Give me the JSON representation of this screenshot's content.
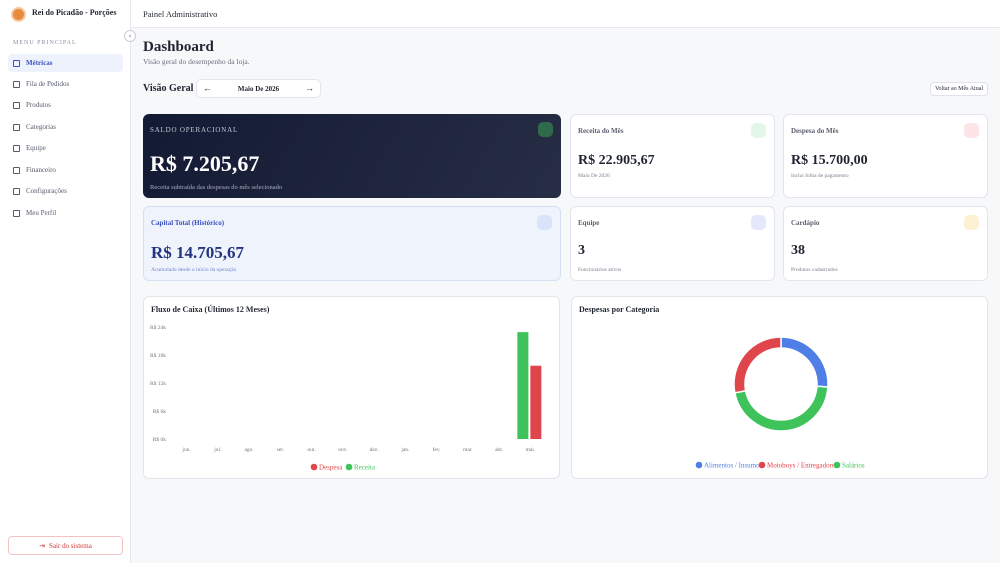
{
  "sidebar": {
    "brand": "Rei do Picadão - Porções",
    "section": "MENU PRINCIPAL",
    "menu": [
      "Métricas",
      "Fila de Pedidos",
      "Produtos",
      "Categorias",
      "Equipe",
      "Financeiro",
      "Configurações",
      "Meu Perfil"
    ],
    "logout": "Sair do sistema"
  },
  "header": {
    "title": "Painel Administrativo"
  },
  "page": {
    "title": "Dashboard",
    "subtitle": "Visão geral do desempenho da loja."
  },
  "overview": {
    "title": "Visão Geral",
    "month": "Maio De 2026",
    "back_button": "Voltar ao Mês Atual"
  },
  "cards": [
    {
      "label": "SALDO OPERACIONAL",
      "value": "R$ 7.205,67",
      "note": "Receita subtraída das despesas do mês selecionado"
    },
    {
      "label": "Receita do Mês",
      "value": "R$ 22.905,67",
      "note": "Maio De 2026"
    },
    {
      "label": "Despesa do Mês",
      "value": "R$ 15.700,00",
      "note": "Inclui folha de pagamento"
    },
    {
      "label": "Capital Total (Histórico)",
      "value": "R$ 14.705,67",
      "note": "Acumulado desde o início da operação"
    },
    {
      "label": "Equipe",
      "value": "3",
      "note": "Funcionários ativos"
    },
    {
      "label": "Cardápio",
      "value": "38",
      "note": "Produtos cadastrados"
    }
  ],
  "chart_data": [
    {
      "type": "bar",
      "title": "Fluxo de Caixa (Últimos 12 Meses)",
      "categories": [
        "jun.",
        "jul.",
        "ago.",
        "set.",
        "out.",
        "nov.",
        "dez.",
        "jan.",
        "fev.",
        "mar.",
        "abr.",
        "mai."
      ],
      "series": [
        {
          "name": "Despesa",
          "color": "#e0454b",
          "values": [
            0,
            0,
            0,
            0,
            0,
            0,
            0,
            0,
            0,
            0,
            0,
            15700
          ]
        },
        {
          "name": "Receita",
          "color": "#3ec35a",
          "values": [
            0,
            0,
            0,
            0,
            0,
            0,
            0,
            0,
            0,
            0,
            0,
            22905.67
          ]
        }
      ],
      "ylim": [
        0,
        24000
      ],
      "yticks": [
        {
          "value": 0,
          "label": "R$ 0k"
        },
        {
          "value": 6000,
          "label": "R$ 6k"
        },
        {
          "value": 12000,
          "label": "R$ 12k"
        },
        {
          "value": 18000,
          "label": "R$ 18k"
        },
        {
          "value": 24000,
          "label": "R$ 24k"
        }
      ]
    },
    {
      "type": "donut",
      "title": "Despesas por Categoria",
      "categories": [
        "Alimentos / Insumos",
        "Motoboys / Entregadores",
        "Salários"
      ],
      "values": [
        26,
        28,
        46
      ],
      "colors": [
        "#4f7fe6",
        "#e0454b",
        "#3ec35a"
      ]
    }
  ]
}
